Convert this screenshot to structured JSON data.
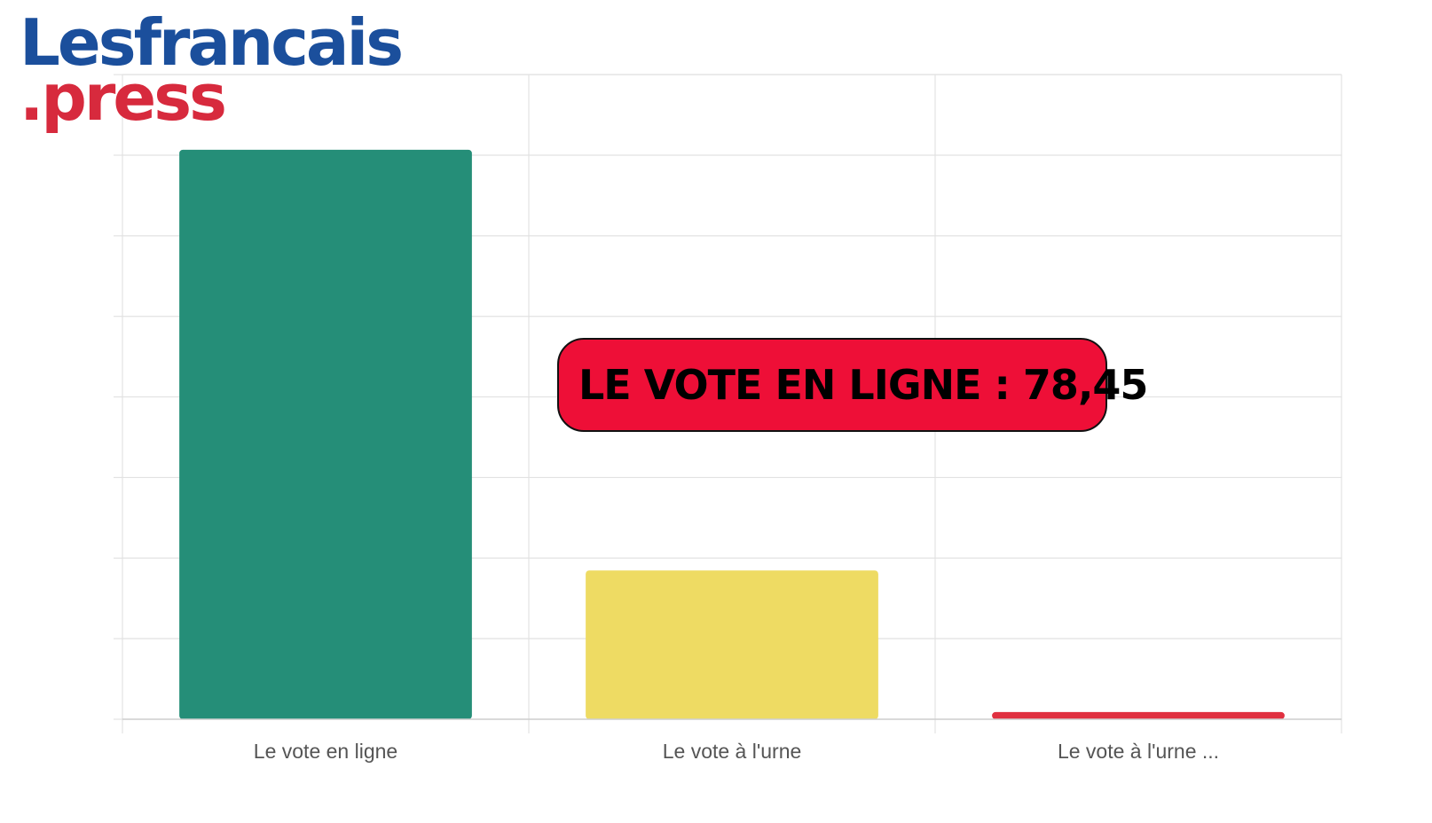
{
  "logo": {
    "line1": "Lesfrancais",
    "line2": ".press",
    "line1_color": "#1b4f9c",
    "line2_color": "#d72a3d"
  },
  "callout": {
    "text": "LE VOTE EN LIGNE : 78,45",
    "bg_color": "#ee0f37"
  },
  "chart_data": {
    "type": "bar",
    "categories": [
      "Le vote en ligne",
      "Le vote à l'urne",
      "Le vote à l'urne ..."
    ],
    "values": [
      78.45,
      20.5,
      1.0
    ],
    "colors": [
      "#258e78",
      "#eedb63",
      "#e03040"
    ],
    "title": "",
    "xlabel": "",
    "ylabel": "",
    "ylim": [
      0,
      80
    ],
    "y_gridlines": [
      0,
      11.1,
      22.2,
      33.3,
      44.4,
      55.5,
      66.6,
      77.7,
      88.8
    ],
    "grid": true,
    "legend": "none",
    "ytick_labels_shown": false,
    "grid_color": "#e2e2e2",
    "tick_label_color": "#555555"
  }
}
